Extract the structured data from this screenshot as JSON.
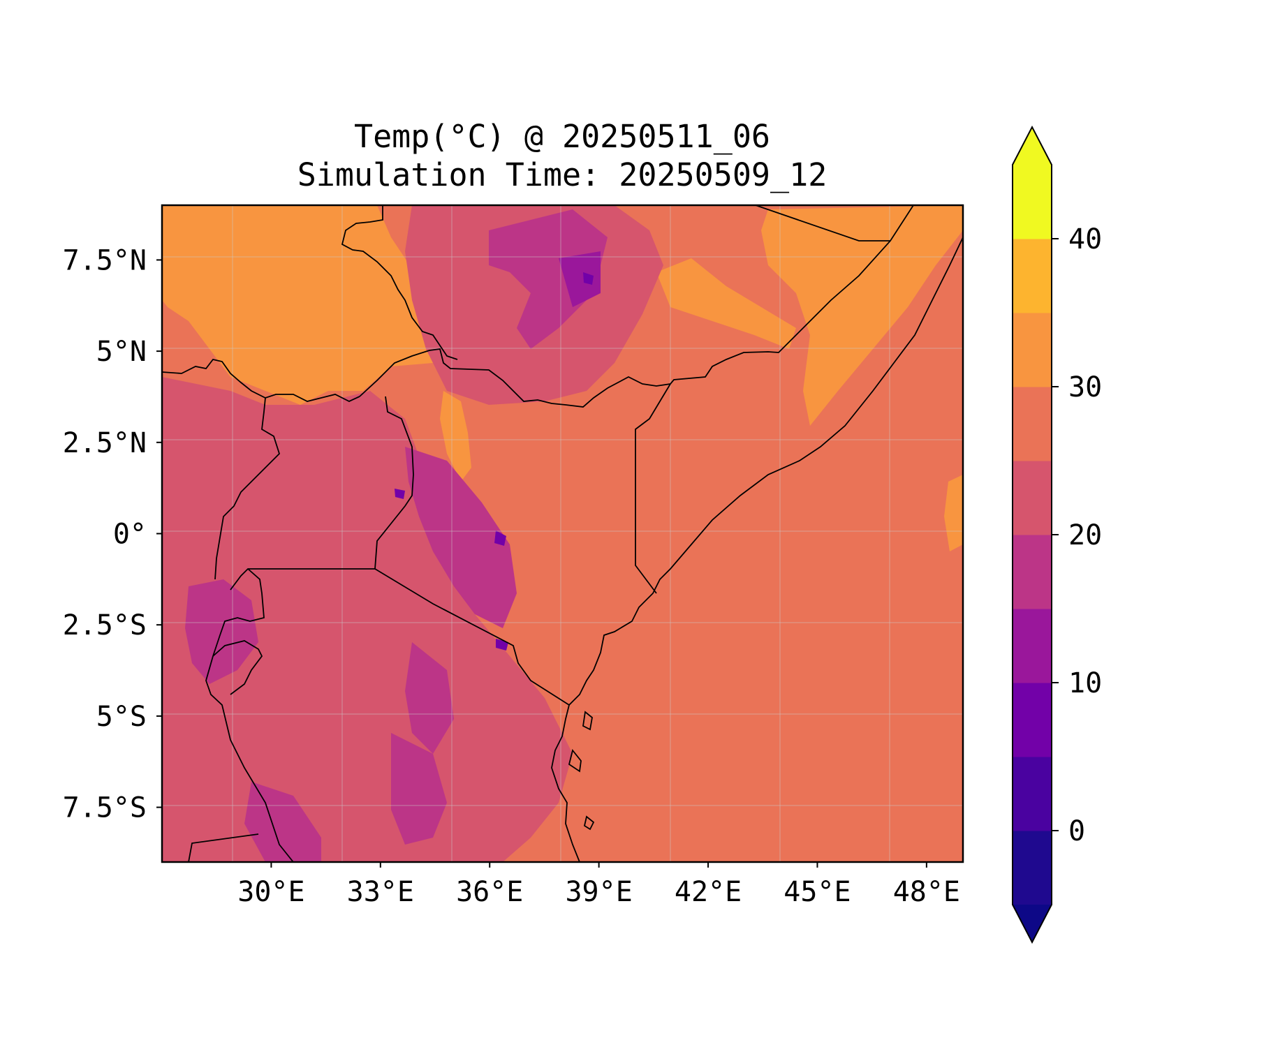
{
  "title": {
    "line1": "Temp(°C) @ 20250511_06",
    "line2": "Simulation Time: 20250509_12"
  },
  "map": {
    "region": "East Africa",
    "projection": "PlateCarree",
    "lon_range": [
      27.0,
      49.0
    ],
    "lat_range": [
      -9.0,
      9.0
    ],
    "gridlines": true,
    "x_ticks": [
      {
        "value": 30,
        "label": "30°E"
      },
      {
        "value": 33,
        "label": "33°E"
      },
      {
        "value": 36,
        "label": "36°E"
      },
      {
        "value": 39,
        "label": "39°E"
      },
      {
        "value": 42,
        "label": "42°E"
      },
      {
        "value": 45,
        "label": "45°E"
      },
      {
        "value": 48,
        "label": "48°E"
      }
    ],
    "y_ticks": [
      {
        "value": 7.5,
        "label": "7.5°N"
      },
      {
        "value": 5,
        "label": "5°N"
      },
      {
        "value": 2.5,
        "label": "2.5°N"
      },
      {
        "value": 0,
        "label": "0°"
      },
      {
        "value": -2.5,
        "label": "2.5°S"
      },
      {
        "value": -5,
        "label": "5°S"
      },
      {
        "value": -7.5,
        "label": "7.5°S"
      }
    ]
  },
  "colorbar": {
    "colormap": "plasma",
    "extend": "both",
    "levels": [
      -5,
      0,
      5,
      10,
      15,
      20,
      25,
      30,
      35,
      40,
      45
    ],
    "colors": [
      "#1f098f",
      "#4a02a0",
      "#7201a8",
      "#9a179b",
      "#bc3587",
      "#d6556d",
      "#ea7357",
      "#f89540",
      "#fdb42f",
      "#f0f921"
    ],
    "under_color": "#0d0887",
    "over_color": "#f0f921",
    "ticks": [
      {
        "value": 0,
        "label": "0"
      },
      {
        "value": 10,
        "label": "10"
      },
      {
        "value": 20,
        "label": "20"
      },
      {
        "value": 30,
        "label": "30"
      },
      {
        "value": 40,
        "label": "40"
      }
    ]
  }
}
